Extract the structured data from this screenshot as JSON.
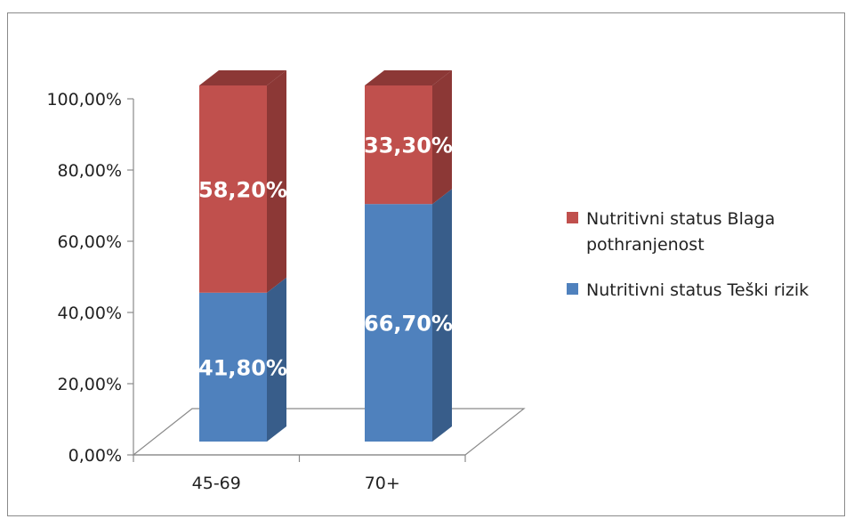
{
  "chart_data": {
    "type": "bar",
    "stacked": true,
    "three_d": true,
    "categories": [
      "45-69",
      "70+"
    ],
    "series": [
      {
        "name": "Nutritivni status Teški rizik",
        "values": [
          41.8,
          66.7
        ],
        "labels": [
          "41,80%",
          "66,70%"
        ],
        "color": "#4f81bd",
        "side_color": "#385d8a"
      },
      {
        "name": "Nutritivni status Blaga pothranjenost",
        "values": [
          58.2,
          33.3
        ],
        "labels": [
          "58,20%",
          "33,30%"
        ],
        "color": "#c0504d",
        "side_color": "#8c3836"
      }
    ],
    "y_ticks": [
      "0,00%",
      "20,00%",
      "40,00%",
      "60,00%",
      "80,00%",
      "100,00%"
    ],
    "ylim": [
      0,
      100
    ],
    "grid": false,
    "legend_position": "right",
    "legend": [
      {
        "lines": [
          "Nutritivni status Blaga",
          "pothranjenost"
        ],
        "color": "#c0504d"
      },
      {
        "lines": [
          "Nutritivni status Teški rizik"
        ],
        "color": "#4f81bd"
      }
    ]
  }
}
